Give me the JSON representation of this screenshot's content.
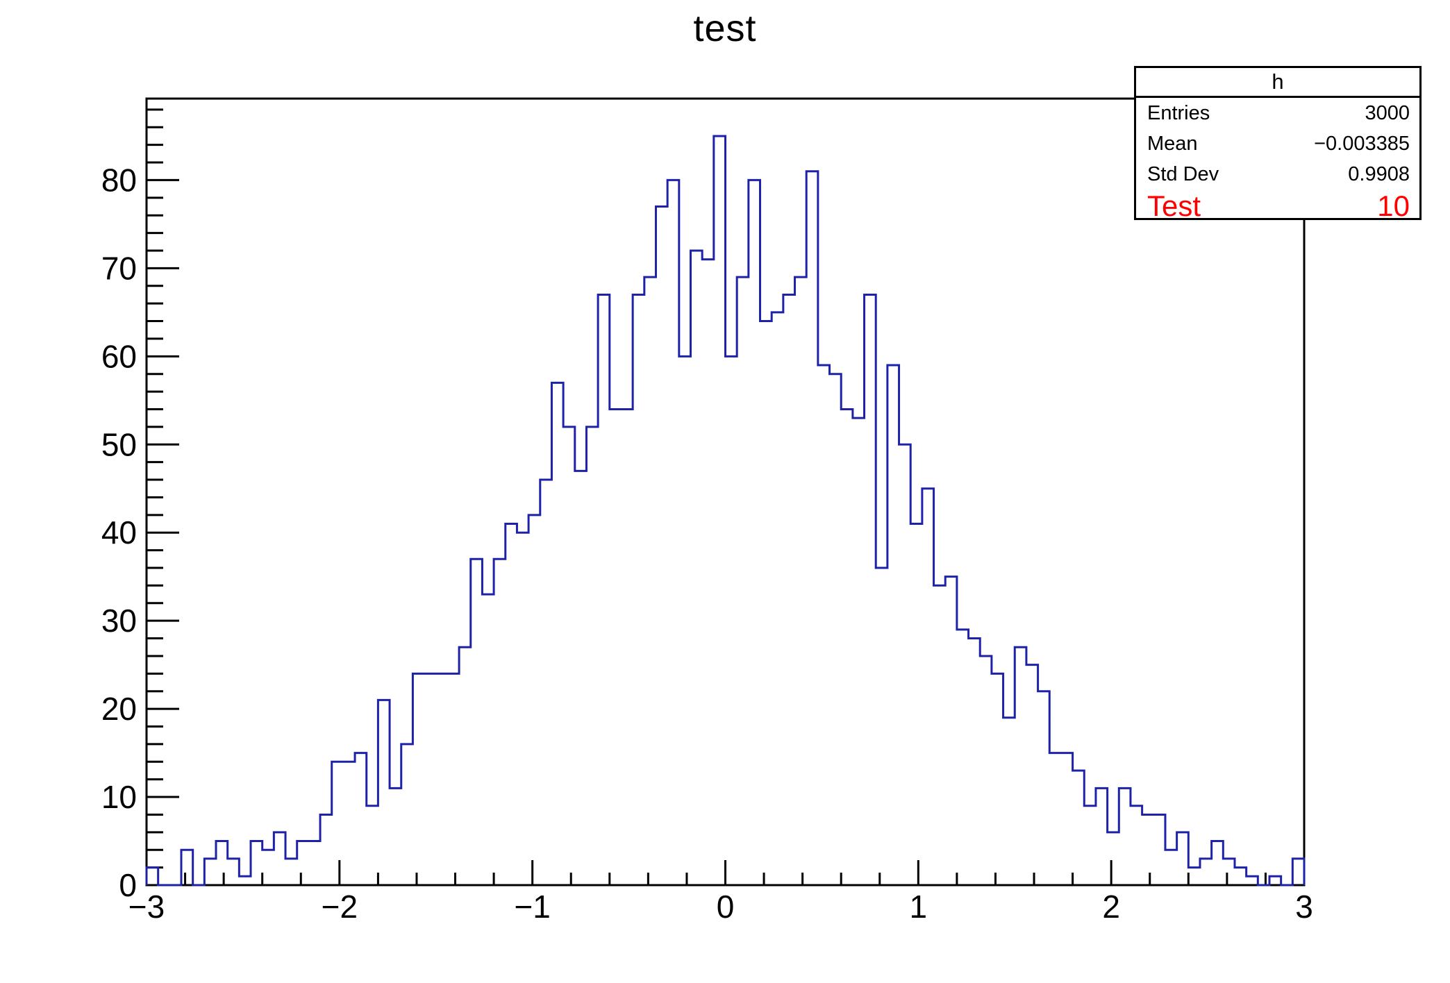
{
  "title": "test",
  "stats_box": {
    "header": "h",
    "rows": [
      {
        "label": "Entries",
        "value": "3000"
      },
      {
        "label": "Mean",
        "value": "−0.003385"
      },
      {
        "label": "Std Dev",
        "value": "0.9908"
      }
    ],
    "highlight_row": {
      "label": "Test",
      "value": "10",
      "color": "#ff0000"
    }
  },
  "chart_data": {
    "type": "bar",
    "subtype": "step-histogram",
    "title": "test",
    "xlabel": "",
    "ylabel": "",
    "x_min": -3,
    "x_max": 3,
    "n_bins": 100,
    "bin_width": 0.06,
    "values": [
      2,
      0,
      0,
      4,
      0,
      3,
      5,
      3,
      1,
      5,
      4,
      6,
      3,
      5,
      5,
      8,
      14,
      14,
      15,
      9,
      21,
      11,
      16,
      24,
      24,
      24,
      24,
      27,
      37,
      33,
      37,
      41,
      40,
      42,
      46,
      57,
      52,
      47,
      52,
      67,
      54,
      54,
      67,
      69,
      77,
      80,
      60,
      72,
      71,
      85,
      60,
      69,
      80,
      64,
      65,
      67,
      69,
      81,
      59,
      58,
      54,
      53,
      67,
      36,
      59,
      50,
      41,
      45,
      34,
      35,
      29,
      28,
      26,
      24,
      19,
      27,
      25,
      22,
      15,
      15,
      13,
      9,
      11,
      6,
      11,
      9,
      8,
      8,
      4,
      6,
      2,
      3,
      5,
      3,
      2,
      1,
      0,
      1,
      0,
      3
    ],
    "ylim": [
      0,
      89.25
    ],
    "x_ticks": [
      -3,
      -2,
      -1,
      0,
      1,
      2,
      3
    ],
    "x_tick_labels": [
      "−3",
      "−2",
      "−1",
      "0",
      "1",
      "2",
      "3"
    ],
    "x_minor_step": 0.2,
    "y_ticks": [
      0,
      10,
      20,
      30,
      40,
      50,
      60,
      70,
      80
    ],
    "y_minor_step": 2,
    "grid": false,
    "legend": "none",
    "line_color": "#1e22a8",
    "axis_color": "#000000",
    "text_color": "#000000"
  },
  "layout_note": "frame left 211, top 142, right 1878, bottom 1275"
}
